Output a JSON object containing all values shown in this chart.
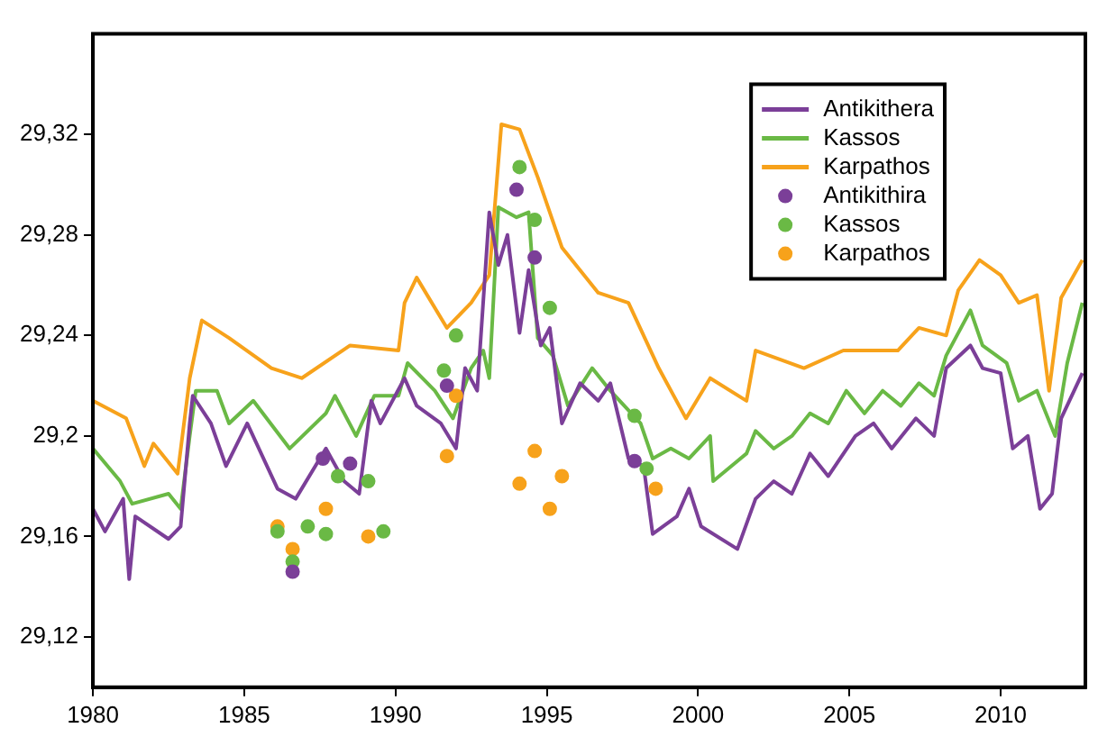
{
  "chart_data": {
    "type": "line",
    "xlim": [
      1980,
      2012.8
    ],
    "xticks": [
      1980,
      1985,
      1990,
      1995,
      2000,
      2005,
      2010
    ],
    "ylim": [
      29.1,
      29.36
    ],
    "yticks": [
      {
        "value": 29.12,
        "label": "29,12"
      },
      {
        "value": 29.16,
        "label": "29,16"
      },
      {
        "value": 29.2,
        "label": "29,2"
      },
      {
        "value": 29.24,
        "label": "29,24"
      },
      {
        "value": 29.28,
        "label": "29,28"
      },
      {
        "value": 29.32,
        "label": "29,32"
      }
    ],
    "grid": false,
    "legend": "top right",
    "marker": "none",
    "line_style": "solid",
    "series": [
      {
        "name": "Antikithera",
        "color": "#7b3f98",
        "x": [
          1980,
          1980.4,
          1981,
          1981.2,
          1981.4,
          1982.5,
          1982.9,
          1983.2,
          1983.3,
          1983.9,
          1984.4,
          1985.1,
          1986.1,
          1986.7,
          1987.7,
          1988.3,
          1988.8,
          1989.2,
          1989.5,
          1990.3,
          1990.7,
          1991.5,
          1992,
          1992.3,
          1992.7,
          1993.1,
          1993.4,
          1993.7,
          1994.1,
          1994.4,
          1994.8,
          1995.1,
          1995.5,
          1996.1,
          1996.7,
          1997.1,
          1997.7,
          1998.2,
          1998.5,
          1999.3,
          1999.7,
          2000.1,
          2001.3,
          2001.9,
          2002.5,
          2003.1,
          2003.7,
          2004.3,
          2005.2,
          2005.8,
          2006.4,
          2007.2,
          2007.8,
          2008.2,
          2009,
          2009.4,
          2010,
          2010.4,
          2010.9,
          2011.3,
          2011.7,
          2012,
          2012.7
        ],
        "values": [
          29.171,
          29.162,
          29.175,
          29.143,
          29.168,
          29.159,
          29.164,
          29.205,
          29.216,
          29.205,
          29.188,
          29.205,
          29.179,
          29.175,
          29.195,
          29.182,
          29.177,
          29.214,
          29.205,
          29.223,
          29.212,
          29.205,
          29.195,
          29.227,
          29.218,
          29.289,
          29.268,
          29.28,
          29.241,
          29.266,
          29.236,
          29.243,
          29.205,
          29.221,
          29.214,
          29.221,
          29.191,
          29.188,
          29.161,
          29.168,
          29.179,
          29.164,
          29.155,
          29.175,
          29.182,
          29.177,
          29.193,
          29.184,
          29.2,
          29.205,
          29.195,
          29.207,
          29.2,
          29.227,
          29.236,
          29.227,
          29.225,
          29.195,
          29.2,
          29.171,
          29.177,
          29.207,
          29.225
        ]
      },
      {
        "name": "Kassos",
        "color": "#6ab945",
        "x": [
          1980,
          1980.9,
          1981.3,
          1982.5,
          1982.9,
          1983.2,
          1983.4,
          1984.1,
          1984.5,
          1985.3,
          1986.5,
          1987.7,
          1988,
          1988.7,
          1989.3,
          1990.1,
          1990.4,
          1991.3,
          1991.9,
          1992.5,
          1992.9,
          1993.1,
          1993.4,
          1994,
          1994.4,
          1994.7,
          1995.2,
          1995.7,
          1996.5,
          1997.1,
          1998.1,
          1998.5,
          1999.1,
          1999.7,
          2000.4,
          2000.5,
          2001.6,
          2001.9,
          2002.5,
          2003.1,
          2003.7,
          2004.3,
          2004.9,
          2005.5,
          2006.1,
          2006.7,
          2007.3,
          2007.8,
          2008.2,
          2009,
          2009.4,
          2010.2,
          2010.6,
          2011.2,
          2011.8,
          2012.2,
          2012.7
        ],
        "values": [
          29.195,
          29.182,
          29.173,
          29.177,
          29.171,
          29.2,
          29.218,
          29.218,
          29.205,
          29.214,
          29.195,
          29.209,
          29.216,
          29.2,
          29.216,
          29.216,
          29.229,
          29.218,
          29.207,
          29.227,
          29.234,
          29.223,
          29.291,
          29.287,
          29.289,
          29.239,
          29.232,
          29.212,
          29.227,
          29.218,
          29.205,
          29.191,
          29.195,
          29.191,
          29.2,
          29.182,
          29.193,
          29.202,
          29.195,
          29.2,
          29.209,
          29.205,
          29.218,
          29.209,
          29.218,
          29.212,
          29.221,
          29.216,
          29.232,
          29.25,
          29.236,
          29.229,
          29.214,
          29.218,
          29.2,
          29.229,
          29.253
        ]
      },
      {
        "name": "Karpathos",
        "color": "#f7a21b",
        "x": [
          1980,
          1981.1,
          1981.7,
          1982,
          1982.8,
          1983.2,
          1983.6,
          1984.5,
          1985.9,
          1986.9,
          1988.5,
          1990.1,
          1990.3,
          1990.7,
          1991.7,
          1992.5,
          1993.1,
          1993.5,
          1994.1,
          1994.7,
          1995.5,
          1996.7,
          1997.7,
          1998.7,
          1999.6,
          2000.4,
          2001.6,
          2001.9,
          2003.5,
          2004.8,
          2006.6,
          2007.3,
          2008.2,
          2008.6,
          2009.3,
          2010,
          2010.6,
          2011.2,
          2011.6,
          2012,
          2012.7
        ],
        "values": [
          29.214,
          29.207,
          29.188,
          29.197,
          29.185,
          29.223,
          29.246,
          29.239,
          29.227,
          29.223,
          29.236,
          29.234,
          29.253,
          29.263,
          29.243,
          29.253,
          29.264,
          29.324,
          29.322,
          29.303,
          29.275,
          29.257,
          29.253,
          29.227,
          29.207,
          29.223,
          29.214,
          29.234,
          29.227,
          29.234,
          29.234,
          29.243,
          29.24,
          29.258,
          29.27,
          29.264,
          29.253,
          29.256,
          29.218,
          29.255,
          29.27
        ]
      },
      {
        "name": "Antikithira",
        "type": "scatter",
        "marker": "circle",
        "color": "#7b3f98",
        "x": [
          1986.6,
          1987.6,
          1988.5,
          1991.7,
          1994,
          1994.6,
          1997.9
        ],
        "values": [
          29.146,
          29.191,
          29.189,
          29.22,
          29.298,
          29.271,
          29.19
        ]
      },
      {
        "name": "Kassos",
        "type": "scatter",
        "marker": "circle",
        "color": "#6ab945",
        "x": [
          1986.1,
          1986.6,
          1987.1,
          1987.7,
          1988.1,
          1989.1,
          1989.6,
          1991.6,
          1992,
          1994.1,
          1994.6,
          1995.1,
          1997.9,
          1998.3
        ],
        "values": [
          29.162,
          29.15,
          29.164,
          29.161,
          29.184,
          29.182,
          29.162,
          29.226,
          29.24,
          29.307,
          29.286,
          29.251,
          29.208,
          29.187
        ]
      },
      {
        "name": "Karpathos",
        "type": "scatter",
        "marker": "circle",
        "color": "#f7a21b",
        "x": [
          1986.1,
          1986.6,
          1987.7,
          1989.1,
          1991.7,
          1992,
          1994.1,
          1994.6,
          1995.1,
          1995.5,
          1998.6
        ],
        "values": [
          29.164,
          29.155,
          29.171,
          29.16,
          29.192,
          29.216,
          29.181,
          29.194,
          29.171,
          29.184,
          29.179
        ]
      }
    ]
  }
}
